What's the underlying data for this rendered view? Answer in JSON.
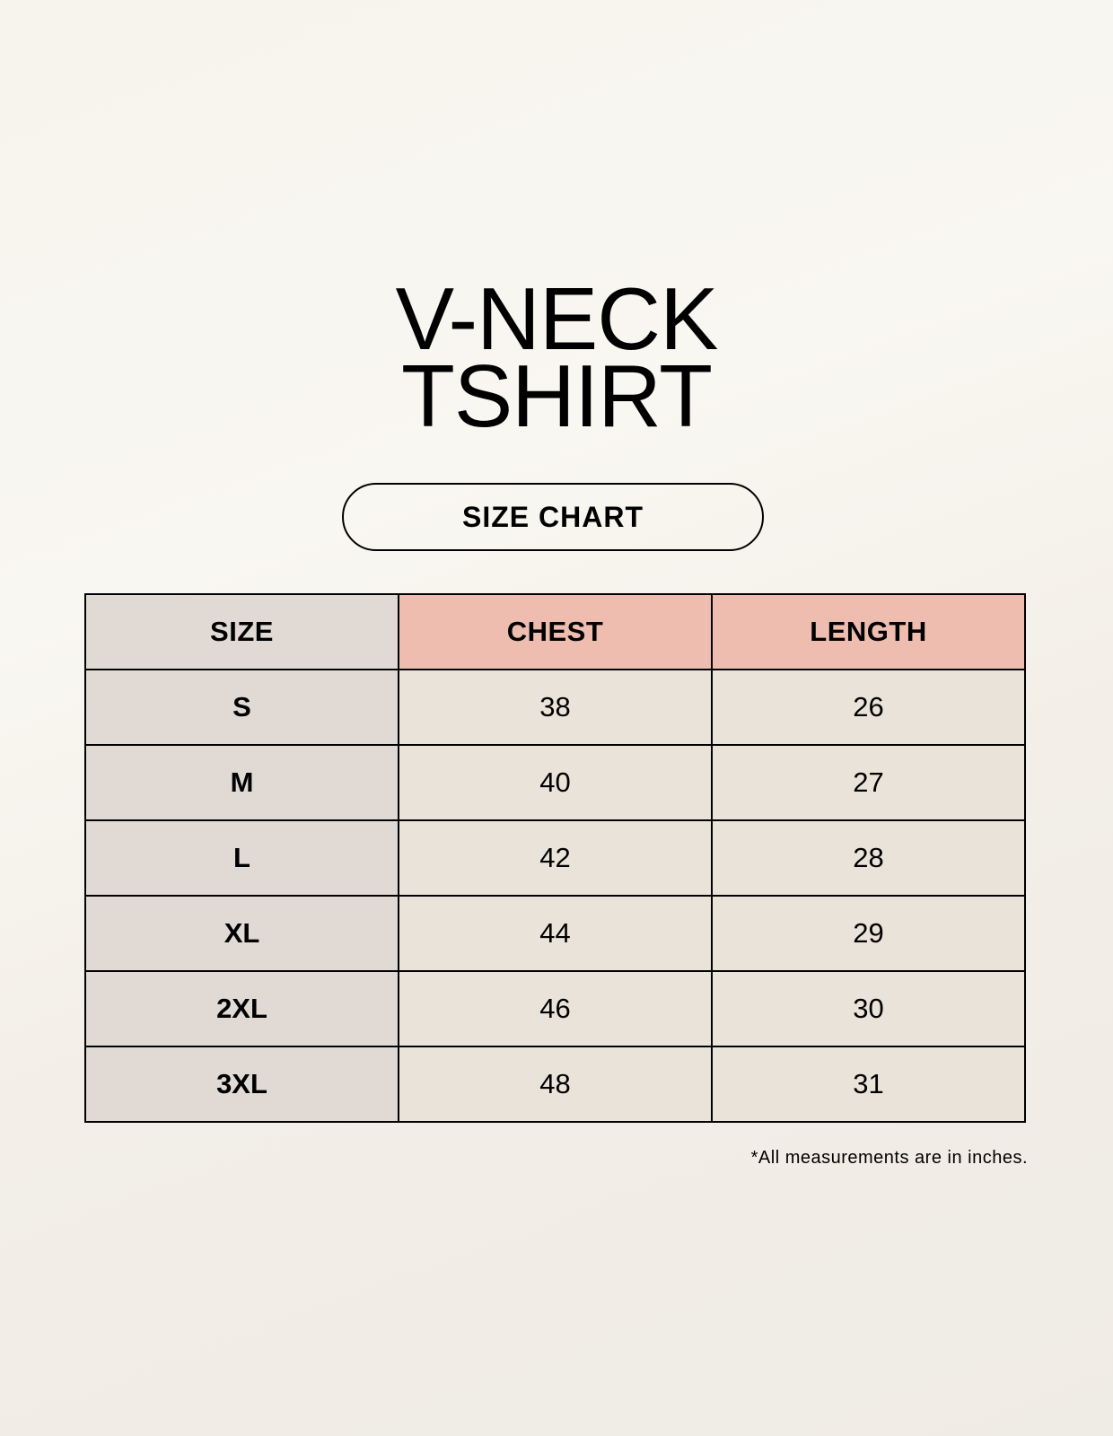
{
  "title": {
    "line1": "V-NECK",
    "line2": "TSHIRT"
  },
  "subtitle": "SIZE CHART",
  "table": {
    "headers": [
      "SIZE",
      "CHEST",
      "LENGTH"
    ],
    "rows": [
      [
        "S",
        "38",
        "26"
      ],
      [
        "M",
        "40",
        "27"
      ],
      [
        "L",
        "42",
        "28"
      ],
      [
        "XL",
        "44",
        "29"
      ],
      [
        "2XL",
        "46",
        "30"
      ],
      [
        "3XL",
        "48",
        "31"
      ]
    ]
  },
  "footnote": "*All measurements are in inches.",
  "colors": {
    "size_column": "#e0d9d4",
    "measure_header": "#eebdb0",
    "cell": "#eae3d9"
  }
}
